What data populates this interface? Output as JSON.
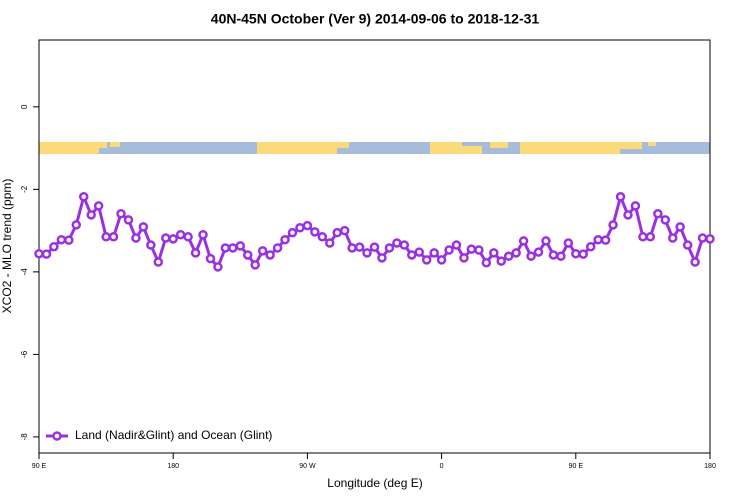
{
  "chart_data": {
    "type": "line",
    "title": "40N-45N October (Ver 9)   2014-09-06 to 2018-12-31",
    "x_label": "Longitude (deg E)",
    "y_label": "XCO2 - MLO trend (ppm)",
    "x": [
      90,
      95,
      100,
      105,
      110,
      115,
      120,
      125,
      130,
      135,
      140,
      145,
      150,
      155,
      160,
      165,
      170,
      175,
      180,
      185,
      190,
      195,
      200,
      205,
      210,
      215,
      220,
      225,
      230,
      235,
      240,
      245,
      250,
      255,
      260,
      265,
      270,
      275,
      280,
      285,
      290,
      295,
      300,
      305,
      310,
      315,
      320,
      325,
      330,
      335,
      340,
      345,
      350,
      355,
      360,
      365,
      370,
      375,
      380,
      385,
      390,
      395,
      400,
      405,
      410,
      415,
      420,
      425,
      430,
      435,
      440,
      445,
      450,
      455,
      460,
      465,
      470,
      475,
      480,
      485,
      490,
      495,
      500,
      505,
      510,
      515,
      520,
      525,
      530,
      535,
      540
    ],
    "series": [
      {
        "name": "Land (Nadir&Glint) and Ocean (Glint)",
        "color": "#9b30e0",
        "values": [
          -3.56,
          -3.57,
          -3.39,
          -3.22,
          -3.23,
          -2.86,
          -2.18,
          -2.62,
          -2.4,
          -3.15,
          -3.15,
          -2.59,
          -2.74,
          -3.18,
          -2.91,
          -3.35,
          -3.76,
          -3.18,
          -3.2,
          -3.1,
          -3.15,
          -3.54,
          -3.1,
          -3.68,
          -3.88,
          -3.42,
          -3.42,
          -3.37,
          -3.59,
          -3.83,
          -3.49,
          -3.59,
          -3.42,
          -3.22,
          -3.05,
          -2.93,
          -2.88,
          -3.03,
          -3.15,
          -3.3,
          -3.05,
          -3.0,
          -3.42,
          -3.4,
          -3.54,
          -3.4,
          -3.66,
          -3.42,
          -3.3,
          -3.35,
          -3.59,
          -3.52,
          -3.71,
          -3.54,
          -3.71,
          -3.47,
          -3.35,
          -3.66,
          -3.45,
          -3.47,
          -3.78,
          -3.54,
          -3.74,
          -3.62,
          -3.54,
          -3.25,
          -3.62,
          -3.52,
          -3.25,
          -3.59,
          -3.62,
          -3.3,
          -3.56,
          -3.57,
          -3.39,
          -3.22,
          -3.23,
          -2.86,
          -2.18,
          -2.62,
          -2.4,
          -3.15,
          -3.15,
          -2.59,
          -2.74,
          -3.18,
          -2.91,
          -3.35,
          -3.76,
          -3.18,
          -3.2
        ]
      }
    ],
    "xlim": [
      90,
      540
    ],
    "xticks": [
      {
        "value": 90,
        "label": "90 E"
      },
      180,
      {
        "value": 270,
        "label": "90 W"
      },
      {
        "value": 360,
        "label": "0"
      },
      {
        "value": 450,
        "label": "90 E"
      },
      {
        "value": 540,
        "label": "180"
      }
    ],
    "ylim": [
      -8.39,
      1.62
    ],
    "yticks": [
      0,
      -2,
      -4,
      -6,
      -8
    ],
    "legend": "bottom-left"
  }
}
